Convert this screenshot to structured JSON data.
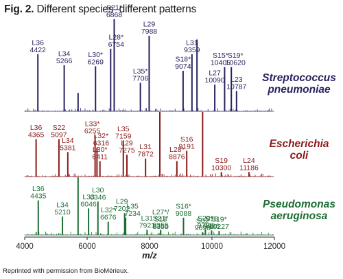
{
  "figure": {
    "title_prefix": "Fig. 2.",
    "title_text": "Different species–different patterns",
    "credit": "Reprinted with permission from BioMérieux."
  },
  "chart_data": {
    "type": "line",
    "title": "Different species–different patterns",
    "xlabel": "m/z",
    "ylabel": "",
    "xlim": [
      4000,
      12000
    ],
    "x_ticks": [
      4000,
      6000,
      8000,
      10000,
      12000
    ],
    "legend": "none",
    "grid": false,
    "series": [
      {
        "name": "Streptococcus pneumoniae",
        "color": "#27235f",
        "peaks": [
          {
            "mz": 4422,
            "rel": 0.62,
            "label": [
              "L36",
              "4422"
            ]
          },
          {
            "mz": 5266,
            "rel": 0.5,
            "label": [
              "L34",
              "5266"
            ]
          },
          {
            "mz": 5710,
            "rel": 0.2
          },
          {
            "mz": 6269,
            "rel": 0.49,
            "label": [
              "L30*",
              "6269"
            ]
          },
          {
            "mz": 6754,
            "rel": 0.68,
            "label": [
              "L28*",
              "6754"
            ]
          },
          {
            "mz": 6868,
            "rel": 1.0,
            "label": [
              "S21*",
              "6868"
            ]
          },
          {
            "mz": 7706,
            "rel": 0.31,
            "label": [
              "L35*",
              "7706"
            ]
          },
          {
            "mz": 7988,
            "rel": 0.82,
            "label": [
              "L29",
              "7988"
            ]
          },
          {
            "mz": 9074,
            "rel": 0.44,
            "label": [
              "S18*",
              "9074"
            ]
          },
          {
            "mz": 9359,
            "rel": 0.62,
            "label": [
              "L31",
              "9359"
            ]
          },
          {
            "mz": 9520,
            "rel": 0.78
          },
          {
            "mz": 10090,
            "rel": 0.29,
            "label": [
              "L27",
              "10090"
            ]
          },
          {
            "mz": 10405,
            "rel": 0.48,
            "label": [
              "S15*",
              "10405"
            ]
          },
          {
            "mz": 10620,
            "rel": 0.48,
            "label": [
              "S19*",
              "10620"
            ]
          },
          {
            "mz": 10787,
            "rel": 0.22,
            "label": [
              "L23",
              "10787"
            ]
          }
        ]
      },
      {
        "name": "Escherichia coli",
        "color": "#8b1a1a",
        "peaks": [
          {
            "mz": 4365,
            "rel": 0.58,
            "label": [
              "L36",
              "4365"
            ]
          },
          {
            "mz": 5097,
            "rel": 0.58,
            "label": [
              "S22",
              "5097"
            ]
          },
          {
            "mz": 5381,
            "rel": 0.38,
            "label": [
              "L34",
              "5381"
            ]
          },
          {
            "mz": 6255,
            "rel": 0.64,
            "label": [
              "L33*",
              "6255"
            ]
          },
          {
            "mz": 6316,
            "rel": 0.45,
            "label": [
              "L32*",
              "6316"
            ]
          },
          {
            "mz": 6411,
            "rel": 0.24,
            "label": [
              "L30*",
              "6411"
            ]
          },
          {
            "mz": 7159,
            "rel": 0.56,
            "label": [
              "L35",
              "7159"
            ]
          },
          {
            "mz": 7275,
            "rel": 0.34,
            "label": [
              "L29",
              "7275"
            ]
          },
          {
            "mz": 7872,
            "rel": 0.28,
            "label": [
              "L31",
              "7872"
            ]
          },
          {
            "mz": 8330,
            "rel": 1.0
          },
          {
            "mz": 8876,
            "rel": 0.24,
            "label": [
              "L28*",
              "8876"
            ]
          },
          {
            "mz": 9191,
            "rel": 0.4,
            "label": [
              "S16",
              "9191"
            ]
          },
          {
            "mz": 9700,
            "rel": 1.0
          },
          {
            "mz": 10300,
            "rel": 0.07,
            "label": [
              "S19",
              "10300"
            ]
          },
          {
            "mz": 11186,
            "rel": 0.07,
            "label": [
              "L24",
              "11186"
            ]
          }
        ]
      },
      {
        "name": "Pseudomonas aeruginosa",
        "color": "#1d6e35",
        "peaks": [
          {
            "mz": 4435,
            "rel": 0.6,
            "label": [
              "L36",
              "4435"
            ]
          },
          {
            "mz": 5210,
            "rel": 0.32,
            "label": [
              "L34",
              "5210"
            ]
          },
          {
            "mz": 5710,
            "rel": 1.0
          },
          {
            "mz": 6046,
            "rel": 0.46,
            "label": [
              "L33",
              "6046"
            ]
          },
          {
            "mz": 6346,
            "rel": 0.58,
            "label": [
              "L30",
              "6346"
            ]
          },
          {
            "mz": 6676,
            "rel": 0.23,
            "label": [
              "L32*",
              "6676"
            ]
          },
          {
            "mz": 7202,
            "rel": 0.38,
            "label": [
              "L29",
              "7202"
            ]
          },
          {
            "mz": 7234,
            "rel": 0.3,
            "label": [
              "L35",
              "7234"
            ]
          },
          {
            "mz": 7921,
            "rel": 0.09,
            "label": [
              "L31",
              "7921"
            ]
          },
          {
            "mz": 8355,
            "rel": 0.09,
            "label": [
              "S21*",
              "8355"
            ]
          },
          {
            "mz": 8355,
            "rel": 0.07,
            "label": [
              "L27*/",
              "S18",
              "8355"
            ]
          },
          {
            "mz": 9088,
            "rel": 0.3,
            "label": [
              "S16*",
              "9088"
            ]
          },
          {
            "mz": 9698,
            "rel": 0.05,
            "label": [
              "S02",
              "9698"
            ]
          },
          {
            "mz": 9788,
            "rel": 0.09,
            "label": [
              "S20*",
              "9788"
            ]
          },
          {
            "mz": 9986,
            "rel": 0.08,
            "label": [
              "S15",
              "9986"
            ]
          },
          {
            "mz": 10227,
            "rel": 0.07,
            "label": [
              "S19*",
              "10227"
            ]
          }
        ]
      }
    ]
  }
}
